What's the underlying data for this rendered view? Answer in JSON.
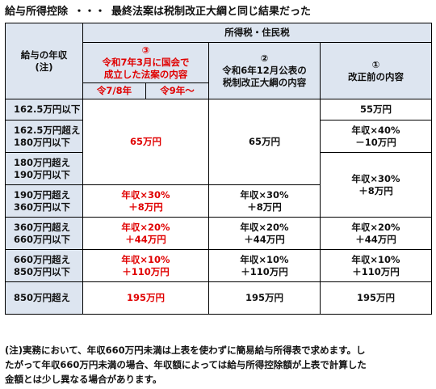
{
  "heading": {
    "title": "給与所得控除",
    "separator": "・・・",
    "subtitle": "最終法案は税制改正大綱と同じ結果だった"
  },
  "table": {
    "header": {
      "income_label": "給与の年収",
      "income_note": "(注)",
      "group_label": "所得税・住民税",
      "col3": {
        "num": "③",
        "line1": "令和7年3月に国会で",
        "line2": "成立した法案の内容"
      },
      "col3_sub": [
        "令7/8年",
        "令9年～"
      ],
      "col2": {
        "num": "②",
        "line1": "令和6年12月公表の",
        "line2": "税制改正大綱の内容"
      },
      "col1": {
        "num": "①",
        "line1": "改正前の内容"
      }
    },
    "rows": [
      {
        "income": [
          "162.5万円以下"
        ]
      },
      {
        "income": [
          "162.5万円超え",
          "180万円以下"
        ]
      },
      {
        "income": [
          "180万円超え",
          "190万円以下"
        ]
      },
      {
        "income": [
          "190万円超え",
          "360万円以下"
        ]
      },
      {
        "income": [
          "360万円超え",
          "660万円以下"
        ]
      },
      {
        "income": [
          "660万円超え",
          "850万円以下"
        ]
      },
      {
        "income": [
          "850万円超え"
        ]
      }
    ],
    "cells": {
      "c3_merged_top": "65万円",
      "c2_merged_top": "65万円",
      "c1_row1": "55万円",
      "c1_row2": [
        "年収×40%",
        "－10万円"
      ],
      "c1_row34": [
        "年収×30%",
        "＋8万円"
      ],
      "c3_row4": [
        "年収×30%",
        "＋8万円"
      ],
      "c2_row4": [
        "年収×30%",
        "＋8万円"
      ],
      "c3_row5": [
        "年収×20%",
        "＋44万円"
      ],
      "c2_row5": [
        "年収×20%",
        "＋44万円"
      ],
      "c1_row5": [
        "年収×20%",
        "＋44万円"
      ],
      "c3_row6": [
        "年収×10%",
        "＋110万円"
      ],
      "c2_row6": [
        "年収×10%",
        "＋110万円"
      ],
      "c1_row6": [
        "年収×10%",
        "＋110万円"
      ],
      "c3_row7": "195万円",
      "c2_row7": "195万円",
      "c1_row7": "195万円"
    }
  },
  "note": {
    "line1": "(注)実務において、年収660万円未満は上表を使わずに簡易給与所得表で求めます。し",
    "line2": "たがって年収660万円未満の場合、年収額によっては給与所得控除額が上表で計算した",
    "line3": "金額とは少し異なる場合があります。"
  },
  "colors": {
    "header_bg": "#dde5f0",
    "accent_red": "#e00000",
    "border": "#000000"
  }
}
